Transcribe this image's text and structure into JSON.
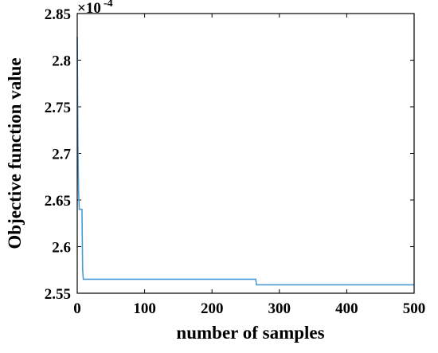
{
  "chart_data": {
    "type": "line",
    "xlabel": "number of samples",
    "ylabel": "Objective function value",
    "xlim": [
      0,
      500
    ],
    "ylim": [
      2.55,
      2.85
    ],
    "y_multiplier": {
      "base": "×10",
      "exponent": "-4"
    },
    "x_ticks": [
      {
        "value": 0,
        "label": "0"
      },
      {
        "value": 100,
        "label": "100"
      },
      {
        "value": 200,
        "label": "200"
      },
      {
        "value": 300,
        "label": "300"
      },
      {
        "value": 400,
        "label": "400"
      },
      {
        "value": 500,
        "label": "500"
      }
    ],
    "y_ticks": [
      {
        "value": 2.55,
        "label": "2.55"
      },
      {
        "value": 2.6,
        "label": "2.6"
      },
      {
        "value": 2.65,
        "label": "2.65"
      },
      {
        "value": 2.7,
        "label": "2.7"
      },
      {
        "value": 2.75,
        "label": "2.75"
      },
      {
        "value": 2.8,
        "label": "2.8"
      },
      {
        "value": 2.85,
        "label": "2.85"
      }
    ],
    "grid": false,
    "line_color": "#4a9ad4",
    "series": [
      {
        "x": [
          0,
          1,
          2,
          3,
          4,
          5,
          7,
          8,
          9,
          10,
          265,
          266,
          500
        ],
        "y": [
          2.825,
          2.71,
          2.66,
          2.64,
          2.64,
          2.64,
          2.64,
          2.575,
          2.565,
          2.565,
          2.565,
          2.559,
          2.559
        ]
      }
    ]
  }
}
